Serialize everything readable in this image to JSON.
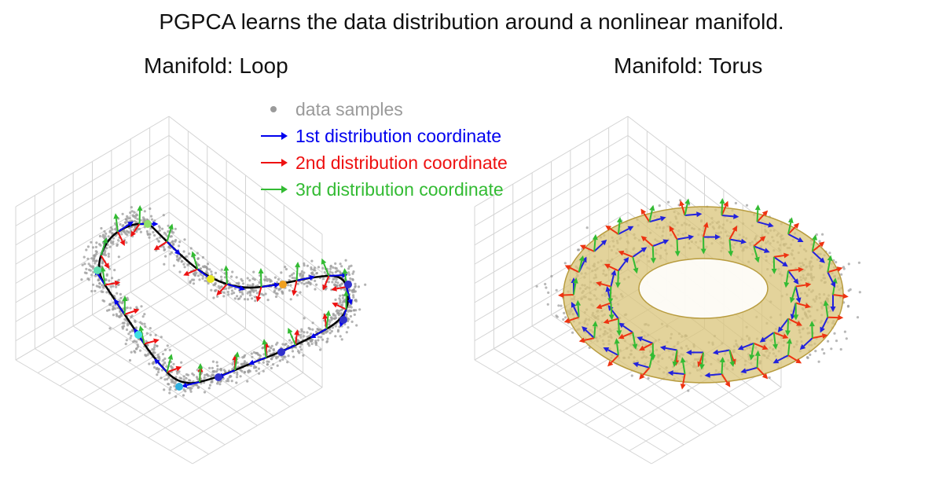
{
  "title": "PGPCA learns the data distribution around a nonlinear manifold.",
  "panels": [
    {
      "label": "Manifold: Loop"
    },
    {
      "label": "Manifold: Torus"
    }
  ],
  "legend": [
    {
      "label": "data samples",
      "icon": "dot-icon",
      "color": "#9a9a9a"
    },
    {
      "label": "1st distribution coordinate",
      "icon": "arrow-icon",
      "color": "#0000ee"
    },
    {
      "label": "2nd distribution coordinate",
      "icon": "arrow-icon",
      "color": "#ee1111"
    },
    {
      "label": "3rd distribution coordinate",
      "icon": "arrow-icon",
      "color": "#33bb33"
    }
  ],
  "colors": {
    "grid": "#d4d4d4",
    "samples": "#9a9a9a",
    "curve": "#000000",
    "torus": "#d9c47a",
    "torus_edge": "#b89c3f"
  }
}
